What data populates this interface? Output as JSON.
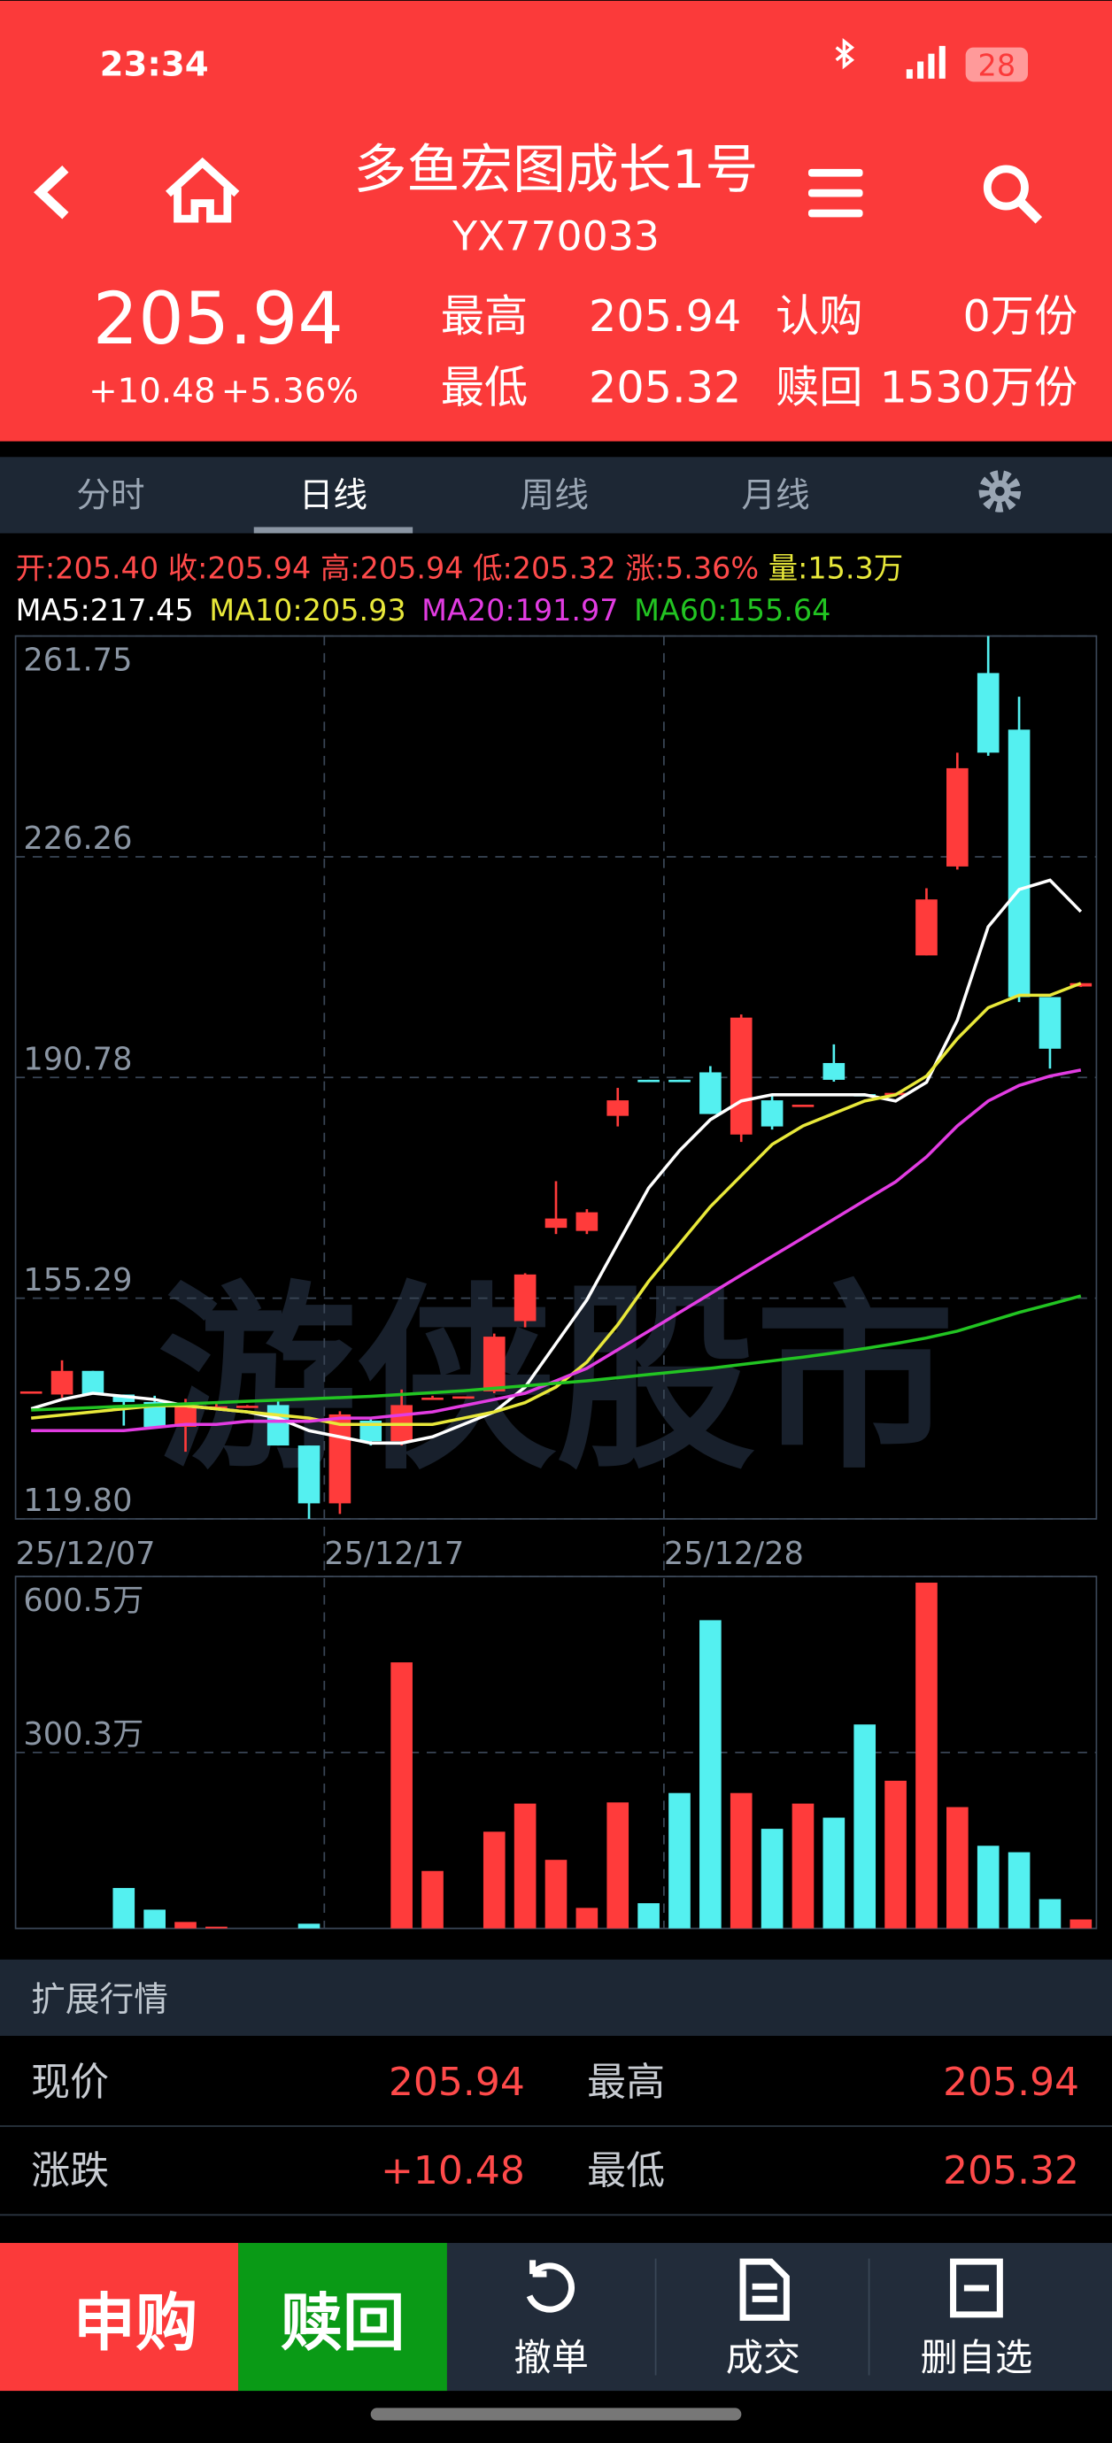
{
  "status_bar": {
    "time": "23:34",
    "battery": "28"
  },
  "header": {
    "title": "多鱼宏图成长1号",
    "code": "YX770033",
    "price": "205.94",
    "change": "+10.48",
    "change_pct": "+5.36%",
    "stats": [
      {
        "label": "最高",
        "value": "205.94"
      },
      {
        "label": "最低",
        "value": "205.32"
      }
    ],
    "subscription": [
      {
        "label": "认购",
        "value": "0万份"
      },
      {
        "label": "赎回",
        "value": "1530万份"
      }
    ]
  },
  "tabs": [
    "分时",
    "日线",
    "周线",
    "月线"
  ],
  "quote_line": [
    "开:205.40",
    "收:205.94",
    "高:205.94",
    "低:205.32",
    "涨:5.36%",
    "量:15.3万"
  ],
  "watermark": "游侠股市",
  "chart_data": [
    {
      "type": "candlestick",
      "categories": [
        "25/12/07",
        null,
        null,
        null,
        null,
        null,
        null,
        null,
        null,
        null,
        "25/12/17",
        null,
        null,
        null,
        null,
        null,
        null,
        null,
        null,
        null,
        null,
        "25/12/28",
        null,
        null,
        null,
        null,
        null,
        null,
        null,
        null,
        null,
        null,
        null,
        null,
        null
      ],
      "open": [
        140.3,
        139.8,
        143.6,
        139.8,
        138.6,
        134.6,
        137.6,
        137.9,
        138.1,
        131.6,
        122.3,
        135.6,
        132.3,
        139.0,
        139.3,
        140.3,
        151.6,
        166.6,
        166.1,
        184.6,
        190.4,
        190.4,
        191.6,
        181.6,
        187.1,
        186.1,
        193.1,
        188.1,
        188.1,
        210.4,
        224.7,
        255.8,
        246.7,
        203.7,
        205.4
      ],
      "high": [
        140.3,
        145.3,
        143.6,
        139.8,
        139.6,
        139.1,
        138.4,
        138.1,
        139.1,
        131.6,
        137.1,
        136.1,
        140.6,
        139.6,
        139.5,
        149.6,
        159.3,
        174.1,
        169.6,
        189.1,
        190.4,
        190.4,
        192.6,
        200.9,
        188.1,
        186.4,
        196.1,
        188.1,
        188.3,
        221.2,
        243.0,
        261.75,
        252.0,
        203.7,
        205.94
      ],
      "low": [
        140.3,
        139.3,
        139.8,
        134.8,
        134.6,
        130.6,
        137.6,
        137.8,
        131.6,
        119.8,
        120.6,
        131.6,
        131.6,
        139.0,
        139.3,
        140.0,
        150.6,
        165.6,
        165.6,
        182.9,
        190.3,
        190.3,
        184.9,
        180.4,
        182.4,
        186.1,
        190.1,
        187.9,
        188.1,
        210.4,
        224.2,
        242.5,
        202.9,
        192.2,
        205.32
      ],
      "close": [
        140.3,
        143.6,
        139.8,
        138.6,
        134.6,
        138.1,
        137.9,
        138.0,
        131.6,
        122.3,
        136.6,
        132.3,
        138.1,
        139.3,
        139.5,
        149.1,
        159.1,
        168.1,
        169.1,
        187.1,
        190.3,
        190.3,
        184.9,
        200.4,
        182.9,
        186.4,
        190.4,
        187.9,
        188.3,
        219.4,
        240.5,
        243.0,
        203.7,
        195.4,
        205.94
      ],
      "up_color": "#ff3b3b",
      "down_color": "#54f0f0",
      "ylim": [
        119.8,
        261.75
      ],
      "yticks": [
        {
          "value": 119.8,
          "label": "119.80"
        },
        155.29,
        190.78,
        226.26,
        261.75
      ],
      "grid": true,
      "series": [
        {
          "name": "MA5:217.45",
          "color": "#ffffff",
          "values": [
            137.5,
            139,
            140,
            139.5,
            139,
            138,
            137.5,
            137,
            136,
            134,
            133,
            132,
            132,
            133,
            135,
            137,
            141,
            148,
            155,
            164,
            173,
            179,
            184,
            187,
            188,
            188,
            188,
            188,
            187,
            190,
            200,
            215,
            221,
            222.5,
            217.45
          ]
        },
        {
          "name": "MA10:205.93",
          "color": "#e8e83a",
          "values": [
            136,
            136.5,
            137,
            137.5,
            138,
            138,
            137.5,
            137,
            136.5,
            136,
            135,
            135,
            135,
            135,
            136,
            137,
            138.5,
            141,
            145,
            151,
            158,
            164,
            170,
            175,
            180,
            183,
            185,
            187,
            188,
            191,
            197,
            202,
            204,
            204,
            205.93
          ]
        },
        {
          "name": "MA20:191.97",
          "color": "#e23ce2",
          "values": [
            134,
            134,
            134,
            134,
            134.5,
            135,
            135,
            135.5,
            135.5,
            135.5,
            136,
            136,
            136.5,
            137,
            138,
            139,
            140,
            142,
            144,
            147,
            150,
            153,
            156,
            159,
            162,
            165,
            168,
            171,
            174,
            178,
            183,
            187,
            189.5,
            191,
            191.97
          ]
        },
        {
          "name": "MA60:155.64",
          "color": "#22c422",
          "values": [
            137.3,
            137.5,
            137.7,
            137.9,
            138.1,
            138.3,
            138.5,
            138.7,
            138.9,
            139.1,
            139.3,
            139.5,
            139.8,
            140.1,
            140.4,
            140.8,
            141.2,
            141.6,
            142,
            142.5,
            143,
            143.5,
            144,
            144.6,
            145.2,
            145.8,
            146.5,
            147.2,
            148,
            148.9,
            150,
            151.5,
            153,
            154.3,
            155.64
          ]
        }
      ]
    },
    {
      "type": "bar",
      "values": [
        0,
        0,
        0,
        69,
        32,
        11,
        3,
        0,
        0,
        8,
        0,
        0,
        454,
        98,
        0,
        165,
        213,
        117,
        35,
        215,
        43,
        231,
        526,
        231,
        170,
        213,
        189,
        348,
        252,
        590,
        207,
        141,
        130,
        50,
        15.3
      ],
      "ylim": [
        0,
        600.5
      ],
      "yticks": [
        {
          "value": 300.3,
          "label": "300.3万"
        },
        {
          "value": 600.5,
          "label": "600.5万"
        }
      ],
      "grid": true
    }
  ],
  "extended": {
    "title": "扩展行情",
    "rows": [
      [
        "现价",
        "205.94",
        "最高",
        "205.94"
      ],
      [
        "涨跌",
        "+10.48",
        "最低",
        "205.32"
      ]
    ]
  },
  "actions": [
    "申购",
    "赎回",
    "撤单",
    "成交",
    "删自选"
  ]
}
